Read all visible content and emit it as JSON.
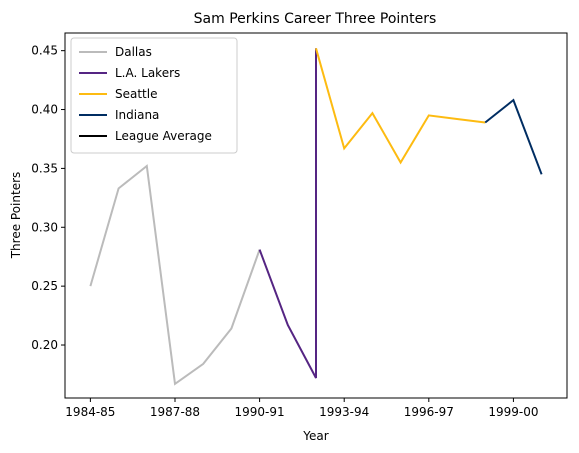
{
  "chart_data": {
    "type": "line",
    "title": "Sam Perkins Career Three Pointers",
    "xlabel": "Year",
    "ylabel": "Three Pointers",
    "x_ticks": [
      "1984-85",
      "1987-88",
      "1990-91",
      "1993-94",
      "1996-97",
      "1999-00"
    ],
    "y_ticks": [
      "0.20",
      "0.25",
      "0.30",
      "0.35",
      "0.40",
      "0.45"
    ],
    "xlim": [
      -0.9,
      16.9
    ],
    "ylim": [
      0.155,
      0.465
    ],
    "legend_position": "top-left",
    "series": [
      {
        "name": "Dallas",
        "color": "#bbbbbb",
        "x": [
          "1984-85",
          "1985-86",
          "1986-87",
          "1987-88",
          "1988-89",
          "1989-90",
          "1990-91"
        ],
        "values": [
          0.25,
          0.333,
          0.352,
          0.167,
          0.184,
          0.214,
          0.281
        ]
      },
      {
        "name": "L.A. Lakers",
        "color": "#552583",
        "x": [
          "1990-91",
          "1991-92",
          "1992-93",
          "1992-93"
        ],
        "values": [
          0.281,
          0.217,
          0.172,
          0.452
        ]
      },
      {
        "name": "Seattle",
        "color": "#fdbb11",
        "x": [
          "1992-93",
          "1993-94",
          "1994-95",
          "1995-96",
          "1996-97",
          "1997-98",
          "1998-99"
        ],
        "values": [
          0.452,
          0.367,
          0.397,
          0.355,
          0.395,
          0.392,
          0.389
        ]
      },
      {
        "name": "Indiana",
        "color": "#002d62",
        "x": [
          "1998-99",
          "1999-00",
          "2000-01"
        ],
        "values": [
          0.389,
          0.408,
          0.345
        ]
      },
      {
        "name": "League Average",
        "color": "#000000",
        "x": [],
        "values": []
      }
    ]
  }
}
